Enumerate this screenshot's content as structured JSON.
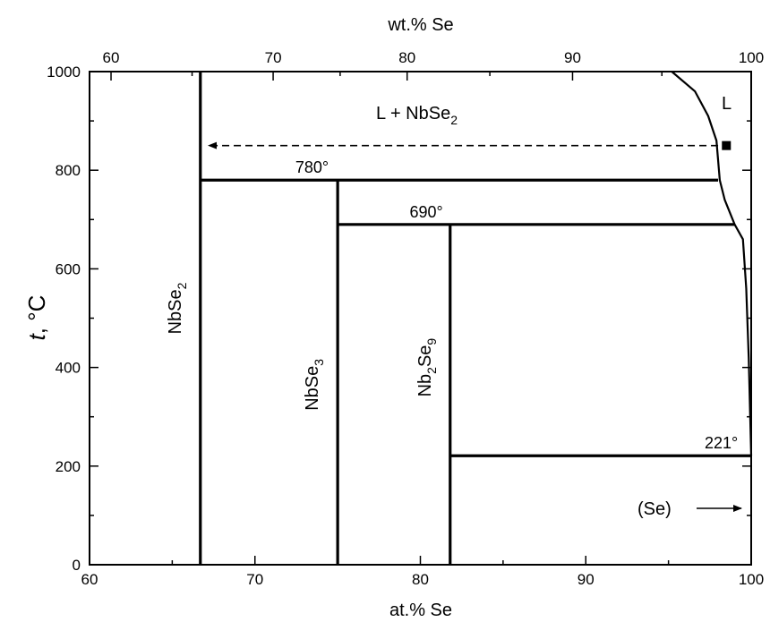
{
  "chart_data": {
    "type": "phase-diagram",
    "xlabel": "at.% Se",
    "x2label": "wt.% Se",
    "ylabel_t": "t",
    "ylabel_rest": ", °C",
    "xlim": [
      60,
      100
    ],
    "ylim": [
      0,
      1000
    ],
    "x_ticks": [
      "60",
      "70",
      "80",
      "90",
      "100"
    ],
    "y_ticks": [
      "0",
      "200",
      "400",
      "600",
      "800",
      "1000"
    ],
    "wt_ticks": [
      {
        "wt": 60,
        "at": 61.3,
        "label": "60"
      },
      {
        "wt": 70,
        "at": 71.1,
        "label": "70"
      },
      {
        "wt": 80,
        "at": 79.2,
        "label": "80"
      },
      {
        "wt": 90,
        "at": 89.2,
        "label": "90"
      },
      {
        "wt": 100,
        "at": 100,
        "label": "100"
      }
    ],
    "compounds": [
      {
        "name_main": "NbSe",
        "sub": "2",
        "name_tail": "",
        "x": 66.7,
        "y_top": 1000,
        "y_bottom": 0
      },
      {
        "name_main": "NbSe",
        "sub": "3",
        "name_tail": "",
        "x": 75.0,
        "y_top": 780,
        "y_bottom": 0
      },
      {
        "name_main": "Nb",
        "sub": "2",
        "name_tail": "Se",
        "sub2": "9",
        "x": 81.8,
        "y_top": 690,
        "y_bottom": 0
      }
    ],
    "isotherms": [
      {
        "t": 780,
        "x_from": 66.7,
        "x_to": 98.0,
        "label": "780°"
      },
      {
        "t": 690,
        "x_from": 75.0,
        "x_to": 99.0,
        "label": "690°"
      },
      {
        "t": 221,
        "x_from": 81.8,
        "x_to": 100.0,
        "label": "221°"
      }
    ],
    "liquidus": [
      {
        "x": 95.2,
        "y": 1000
      },
      {
        "x": 96.6,
        "y": 960
      },
      {
        "x": 97.4,
        "y": 910
      },
      {
        "x": 97.9,
        "y": 860
      },
      {
        "x": 98.1,
        "y": 780
      },
      {
        "x": 98.4,
        "y": 740
      },
      {
        "x": 99.0,
        "y": 690
      },
      {
        "x": 99.5,
        "y": 660
      },
      {
        "x": 99.7,
        "y": 560
      },
      {
        "x": 99.85,
        "y": 420
      },
      {
        "x": 100.0,
        "y": 221
      }
    ],
    "experimental_point": {
      "x": 98.5,
      "y": 850
    },
    "dashed_arrow": {
      "t": 850,
      "x_from": 98.0,
      "x_to": 67.2
    },
    "region_labels": {
      "l_nbse2_main": "L + NbSe",
      "l_nbse2_sub": "2",
      "liquid": "L",
      "se": "(Se)"
    }
  }
}
